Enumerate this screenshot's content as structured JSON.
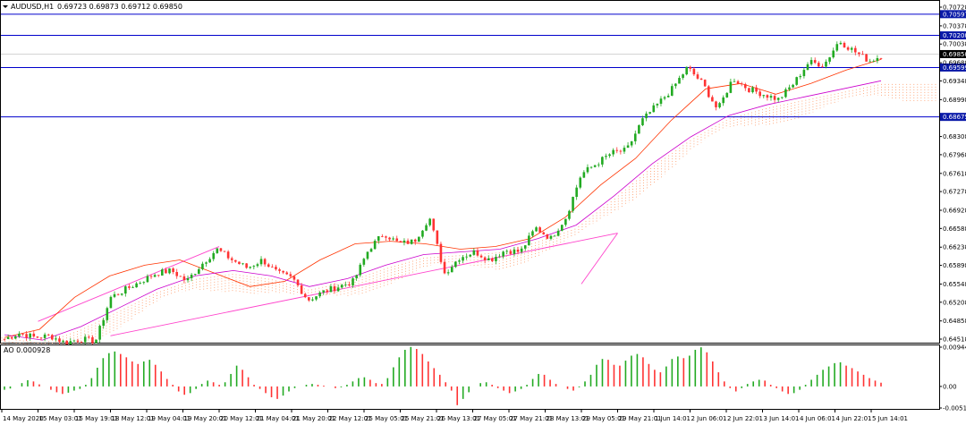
{
  "chart_data": [
    {
      "type": "candlestick",
      "title": "AUDUSD,H1",
      "ohlc_label": "0.69723 0.69873 0.69712 0.69850",
      "ylim": [
        0.64518,
        0.70728
      ],
      "y_ticks": [
        {
          "value": 0.70728,
          "label": "0.70728"
        },
        {
          "value": 0.70378,
          "label": "0.70378"
        },
        {
          "value": 0.70038,
          "label": "0.70038"
        },
        {
          "value": 0.69688,
          "label": "0.69688"
        },
        {
          "value": 0.69348,
          "label": "0.69348"
        },
        {
          "value": 0.68998,
          "label": "0.68998"
        },
        {
          "value": 0.68308,
          "label": "0.68308"
        },
        {
          "value": 0.67968,
          "label": "0.67968"
        },
        {
          "value": 0.67618,
          "label": "0.67618"
        },
        {
          "value": 0.67278,
          "label": "0.67278"
        },
        {
          "value": 0.66928,
          "label": "0.66928"
        },
        {
          "value": 0.66588,
          "label": "0.66588"
        },
        {
          "value": 0.66238,
          "label": "0.66238"
        },
        {
          "value": 0.65898,
          "label": "0.65898"
        },
        {
          "value": 0.65548,
          "label": "0.65548"
        },
        {
          "value": 0.65208,
          "label": "0.65208"
        },
        {
          "value": 0.64858,
          "label": "0.64858"
        },
        {
          "value": 0.64518,
          "label": "0.64518"
        }
      ],
      "horizontal_levels": [
        {
          "value": 0.70597,
          "label": "0.70597",
          "color": "#0000cc"
        },
        {
          "value": 0.702,
          "label": "0.70200",
          "color": "#0000cc"
        },
        {
          "value": 0.69599,
          "label": "0.69599",
          "color": "#0000cc"
        },
        {
          "value": 0.68675,
          "label": "0.68675",
          "color": "#0000cc"
        }
      ],
      "current_price": {
        "value": 0.6985,
        "label": "0.69850"
      },
      "x_labels": [
        "14 May 2020",
        "15 May 03:01",
        "15 May 19:01",
        "18 May 12:01",
        "19 May 04:01",
        "19 May 20:01",
        "20 May 12:01",
        "21 May 04:01",
        "21 May 20:01",
        "22 May 12:01",
        "25 May 05:01",
        "25 May 21:01",
        "26 May 13:01",
        "27 May 05:01",
        "27 May 21:01",
        "28 May 13:01",
        "29 May 05:01",
        "29 May 21:01",
        "1 Jun 14:01",
        "2 Jun 06:01",
        "2 Jun 22:01",
        "3 Jun 14:01",
        "4 Jun 06:01",
        "4 Jun 22:01",
        "5 Jun 14:01"
      ],
      "price_path": [
        [
          0.6452,
          0.6463
        ],
        [
          0.6463,
          0.6455
        ],
        [
          0.6455,
          0.6458
        ],
        [
          0.6458,
          0.6445
        ],
        [
          0.6445,
          0.6452
        ],
        [
          0.6452,
          0.6448
        ],
        [
          0.6448,
          0.653
        ],
        [
          0.653,
          0.6545
        ],
        [
          0.6545,
          0.656
        ],
        [
          0.656,
          0.6575
        ],
        [
          0.6575,
          0.658
        ],
        [
          0.658,
          0.656
        ],
        [
          0.656,
          0.6592
        ],
        [
          0.6592,
          0.662
        ],
        [
          0.662,
          0.66
        ],
        [
          0.66,
          0.6585
        ],
        [
          0.6585,
          0.66
        ],
        [
          0.66,
          0.6575
        ],
        [
          0.6575,
          0.6565
        ],
        [
          0.6565,
          0.6525
        ],
        [
          0.6525,
          0.654
        ],
        [
          0.654,
          0.655
        ],
        [
          0.655,
          0.656
        ],
        [
          0.656,
          0.662
        ],
        [
          0.662,
          0.665
        ],
        [
          0.665,
          0.663
        ],
        [
          0.663,
          0.6635
        ],
        [
          0.6635,
          0.668
        ],
        [
          0.668,
          0.6575
        ],
        [
          0.6575,
          0.6605
        ],
        [
          0.6605,
          0.6615
        ],
        [
          0.6615,
          0.66
        ],
        [
          0.66,
          0.6618
        ],
        [
          0.6618,
          0.6615
        ],
        [
          0.6615,
          0.666
        ],
        [
          0.666,
          0.664
        ],
        [
          0.664,
          0.668
        ],
        [
          0.668,
          0.676
        ],
        [
          0.676,
          0.678
        ],
        [
          0.678,
          0.68
        ],
        [
          0.68,
          0.6805
        ],
        [
          0.6805,
          0.686
        ],
        [
          0.686,
          0.689
        ],
        [
          0.689,
          0.692
        ],
        [
          0.692,
          0.696
        ],
        [
          0.696,
          0.693
        ],
        [
          0.693,
          0.688
        ],
        [
          0.688,
          0.694
        ],
        [
          0.694,
          0.692
        ],
        [
          0.692,
          0.691
        ],
        [
          0.691,
          0.69
        ],
        [
          0.69,
          0.693
        ],
        [
          0.693,
          0.697
        ],
        [
          0.697,
          0.6965
        ],
        [
          0.6965,
          0.701
        ],
        [
          0.701,
          0.699
        ],
        [
          0.699,
          0.6972
        ],
        [
          0.6972,
          0.6985
        ]
      ],
      "moving_averages": [
        {
          "color": "#ff3300",
          "values": [
            0.6455,
            0.647,
            0.653,
            0.657,
            0.659,
            0.66,
            0.6575,
            0.655,
            0.656,
            0.66,
            0.663,
            0.6635,
            0.663,
            0.662,
            0.6625,
            0.664,
            0.668,
            0.674,
            0.679,
            0.686,
            0.692,
            0.693,
            0.691,
            0.693,
            0.6955,
            0.6975
          ]
        },
        {
          "color": "#cc00cc",
          "values": [
            0.646,
            0.645,
            0.6475,
            0.651,
            0.6545,
            0.657,
            0.658,
            0.657,
            0.655,
            0.6565,
            0.659,
            0.661,
            0.6615,
            0.662,
            0.664,
            0.6665,
            0.672,
            0.678,
            0.683,
            0.687,
            0.689,
            0.6905,
            0.692,
            0.6935
          ]
        }
      ],
      "trendlines": [
        {
          "color": "#ff44cc",
          "from": [
            "15 May 03:01",
            0.6485
          ],
          "to": [
            "20 May 12:01",
            0.6625
          ]
        },
        {
          "color": "#ff44cc",
          "from": [
            "18 May 12:01",
            0.6458
          ],
          "to": [
            "29 May 21:01",
            0.665
          ]
        },
        {
          "color": "#ff44cc",
          "from": [
            "29 May 05:01",
            0.6555
          ],
          "to": [
            "29 May 21:01",
            0.665
          ]
        }
      ],
      "ichimoku_cloud": {
        "color": "#ff9966"
      }
    },
    {
      "type": "bar",
      "title": "AO 0.000928",
      "indicator": "AO",
      "last_value": "0.000928",
      "ylim": [
        -0.00518,
        0.00944
      ],
      "y_ticks": [
        {
          "value": 0.00944,
          "label": "0.00944"
        },
        {
          "value": 0.0,
          "label": "0.00"
        },
        {
          "value": -0.00518,
          "label": "-0.00518"
        }
      ],
      "colors": {
        "up": "#22aa22",
        "down": "#ff3333"
      },
      "values": [
        -0.0008,
        -0.0005,
        0.0,
        0.0008,
        0.0015,
        0.0012,
        0.0005,
        0.0,
        -0.0008,
        -0.0014,
        -0.0018,
        -0.0015,
        -0.001,
        -0.0006,
        0.0004,
        0.002,
        0.0045,
        0.0068,
        0.008,
        0.0084,
        0.0078,
        0.007,
        0.006,
        0.0054,
        0.006,
        0.0064,
        0.0052,
        0.0036,
        0.0018,
        0.0004,
        -0.0012,
        -0.002,
        -0.0016,
        -0.0006,
        0.0006,
        0.0014,
        0.001,
        0.0004,
        0.001,
        0.003,
        0.005,
        0.004,
        0.0022,
        0.0004,
        -0.0006,
        -0.0016,
        -0.0026,
        -0.003,
        -0.0022,
        -0.0012,
        -0.0004,
        0.0,
        0.0004,
        0.0006,
        0.0004,
        0.0002,
        0.0,
        -0.0004,
        -0.0002,
        0.0004,
        0.0012,
        0.002,
        0.0022,
        0.0016,
        0.0008,
        0.0006,
        0.002,
        0.0046,
        0.007,
        0.0088,
        0.0095,
        0.009,
        0.0078,
        0.006,
        0.0044,
        0.0028,
        0.001,
        -0.001,
        -0.0045,
        -0.003,
        -0.0014,
        0.0,
        0.0008,
        0.001,
        0.0004,
        -0.0004,
        -0.001,
        -0.0016,
        -0.0012,
        -0.0006,
        0.0004,
        0.0018,
        0.003,
        0.0028,
        0.0016,
        0.0006,
        0.0,
        -0.0006,
        -0.001,
        -0.0002,
        0.0012,
        0.0028,
        0.0052,
        0.0066,
        0.0064,
        0.0052,
        0.005,
        0.0062,
        0.0074,
        0.0078,
        0.007,
        0.0054,
        0.004,
        0.0034,
        0.0048,
        0.0066,
        0.0072,
        0.0068,
        0.0074,
        0.0088,
        0.0094,
        0.0082,
        0.006,
        0.0034,
        0.0012,
        -0.0004,
        -0.0012,
        -0.0004,
        0.0006,
        0.0012,
        0.0016,
        0.0014,
        0.0004,
        -0.0004,
        -0.0012,
        -0.0018,
        -0.0016,
        -0.0008,
        0.0004,
        0.0016,
        0.0028,
        0.004,
        0.0048,
        0.0056,
        0.0058,
        0.005,
        0.0044,
        0.0036,
        0.0028,
        0.002,
        0.0014,
        0.0009
      ]
    }
  ]
}
